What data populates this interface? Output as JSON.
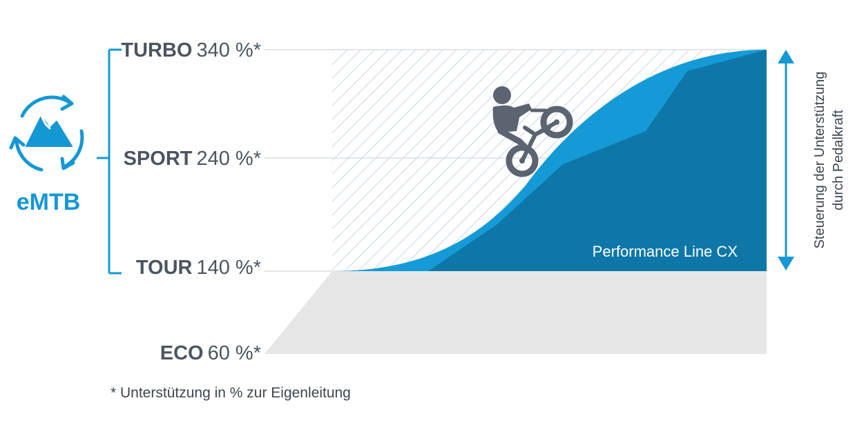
{
  "brand": {
    "label": "eMTB",
    "icon": "emtb-mountain-cycle-icon",
    "color": "#1398d4"
  },
  "levels": [
    {
      "mode": "TURBO",
      "percent": "340 %*",
      "value": 340
    },
    {
      "mode": "SPORT",
      "percent": "240 %*",
      "value": 240
    },
    {
      "mode": "TOUR",
      "percent": "140 %*",
      "value": 140
    },
    {
      "mode": "ECO",
      "percent": "60 %*",
      "value": 60
    }
  ],
  "product_label": "Performance Line CX",
  "side_label": {
    "line1": "Steuerung der Unterstützung",
    "line2": "durch Pedalkraft"
  },
  "footnote": "* Unterstützung in % zur Eigenleitung",
  "colors": {
    "dark_blue": "#0e77a8",
    "light_blue": "#149bd7",
    "hatch": "#c9d9e8",
    "eco_gray": "#e6e6e6",
    "text_gray": "#4b5560",
    "rider": "#5b6470"
  }
}
